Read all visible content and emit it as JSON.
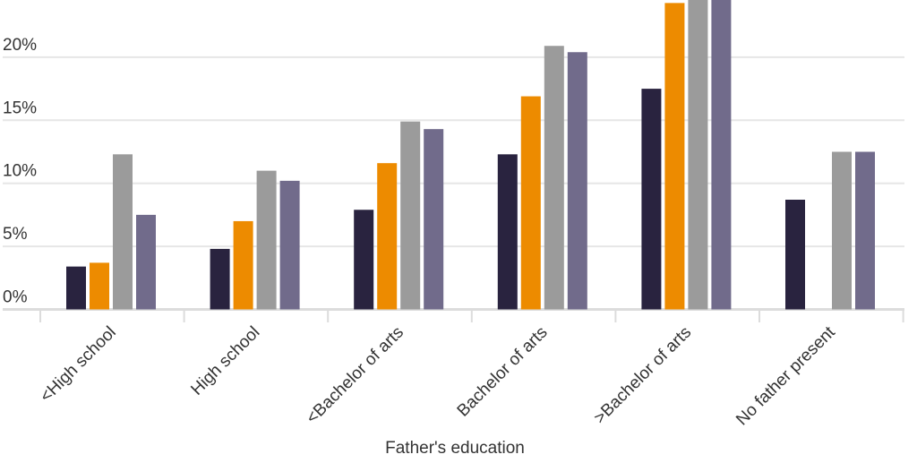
{
  "chart_data": {
    "type": "bar",
    "title": "",
    "xlabel": "Father's education",
    "ylabel": "",
    "ylim": [
      0,
      24.5
    ],
    "yticks": [
      "0%",
      "5%",
      "10%",
      "15%",
      "20%"
    ],
    "ytick_values": [
      0,
      5,
      10,
      15,
      20
    ],
    "grid": true,
    "categories": [
      "<High school",
      "High school",
      "<Bachelor of arts",
      "Bachelor of arts",
      ">Bachelor of arts",
      "No father present"
    ],
    "series": [
      {
        "color": "#29233f",
        "values": [
          3.4,
          4.8,
          7.9,
          12.3,
          17.5,
          8.7
        ]
      },
      {
        "color": "#ed8b00",
        "values": [
          3.7,
          7.0,
          11.6,
          16.9,
          24.3,
          null
        ]
      },
      {
        "color": "#9b9b9b",
        "values": [
          12.3,
          11.0,
          14.9,
          20.9,
          25.5,
          12.5
        ]
      },
      {
        "color": "#716b8b",
        "values": [
          7.5,
          10.2,
          14.3,
          20.4,
          26.0,
          12.5
        ]
      }
    ]
  }
}
